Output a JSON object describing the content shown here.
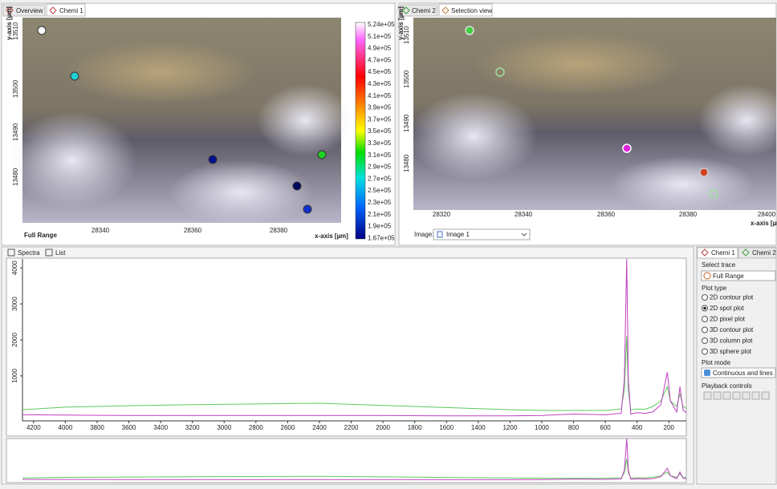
{
  "left_view": {
    "tabs": [
      "Overview",
      "Chemi 1"
    ],
    "y_axis_label": "y-axis [µm]",
    "y_ticks": [
      "13510",
      "13500",
      "13490",
      "13480"
    ],
    "x_ticks": [
      "28340",
      "28360",
      "28380"
    ],
    "x_axis_label": "x-axis [µm]",
    "range_label": "Full Range",
    "colorbar_labels": [
      "5.24e+05",
      "5.1e+05",
      "4.9e+05",
      "4.7e+05",
      "4.5e+05",
      "4.3e+05",
      "4.1e+05",
      "3.9e+05",
      "3.7e+05",
      "3.5e+05",
      "3.3e+05",
      "3.1e+05",
      "2.9e+05",
      "2.7e+05",
      "2.5e+05",
      "2.3e+05",
      "2.1e+05",
      "1.9e+05",
      "1.67e+05"
    ]
  },
  "right_view": {
    "tabs": [
      "Chemi 2",
      "Selection view"
    ],
    "y_axis_label": "y-axis [µm]",
    "y_ticks": [
      "13510",
      "13500",
      "13490",
      "13480"
    ],
    "x_ticks": [
      "28320",
      "28340",
      "28360",
      "28380",
      "28400"
    ],
    "x_axis_label": "x-axis [µm]",
    "image_label": "Image:",
    "image_value": "Image 1"
  },
  "spectra_tabs": [
    "Spectra",
    "List"
  ],
  "chart_data": {
    "type": "line",
    "x": [
      4270,
      4000,
      3600,
      3200,
      2800,
      2400,
      2000,
      1600,
      1200,
      1000,
      800,
      600,
      500,
      480,
      465,
      455,
      440,
      400,
      350,
      300,
      250,
      210,
      190,
      150,
      130,
      110,
      90
    ],
    "series": [
      {
        "color": "#5cc85c",
        "values": [
          60,
          130,
          170,
          200,
          220,
          240,
          180,
          120,
          60,
          40,
          40,
          40,
          80,
          600,
          2100,
          600,
          60,
          80,
          70,
          150,
          300,
          700,
          300,
          150,
          500,
          150,
          100
        ]
      },
      {
        "color": "#c040c0",
        "values": [
          -80,
          -90,
          -100,
          -100,
          -100,
          -100,
          -100,
          -110,
          -110,
          -100,
          -60,
          -80,
          -40,
          900,
          4250,
          900,
          -60,
          -20,
          -40,
          0,
          200,
          1100,
          300,
          0,
          700,
          50,
          -20
        ]
      }
    ],
    "xlim": [
      4270,
      90
    ],
    "xticks": [
      4200,
      4000,
      3800,
      3600,
      3400,
      3200,
      3000,
      2800,
      2600,
      2400,
      2200,
      2000,
      1800,
      1600,
      1400,
      1200,
      1000,
      800,
      600,
      400,
      200
    ],
    "ylim": [
      -250,
      4250
    ],
    "yticks": [
      1000,
      2000,
      3000,
      4000
    ]
  },
  "side_panel": {
    "tabs": [
      "Chemi 1",
      "Chemi 2"
    ],
    "select_trace_label": "Select trace",
    "trace_value": "Full Range",
    "plot_type_label": "Plot type",
    "plot_types": [
      "2D contour plot",
      "2D spot plot",
      "2D pixel plot",
      "3D contour plot",
      "3D column plot",
      "3D sphere plot"
    ],
    "selected_index": 1,
    "plot_mode_label": "Plot mode",
    "plot_mode_value": "Continuous and lines",
    "playback_label": "Playback controls"
  }
}
